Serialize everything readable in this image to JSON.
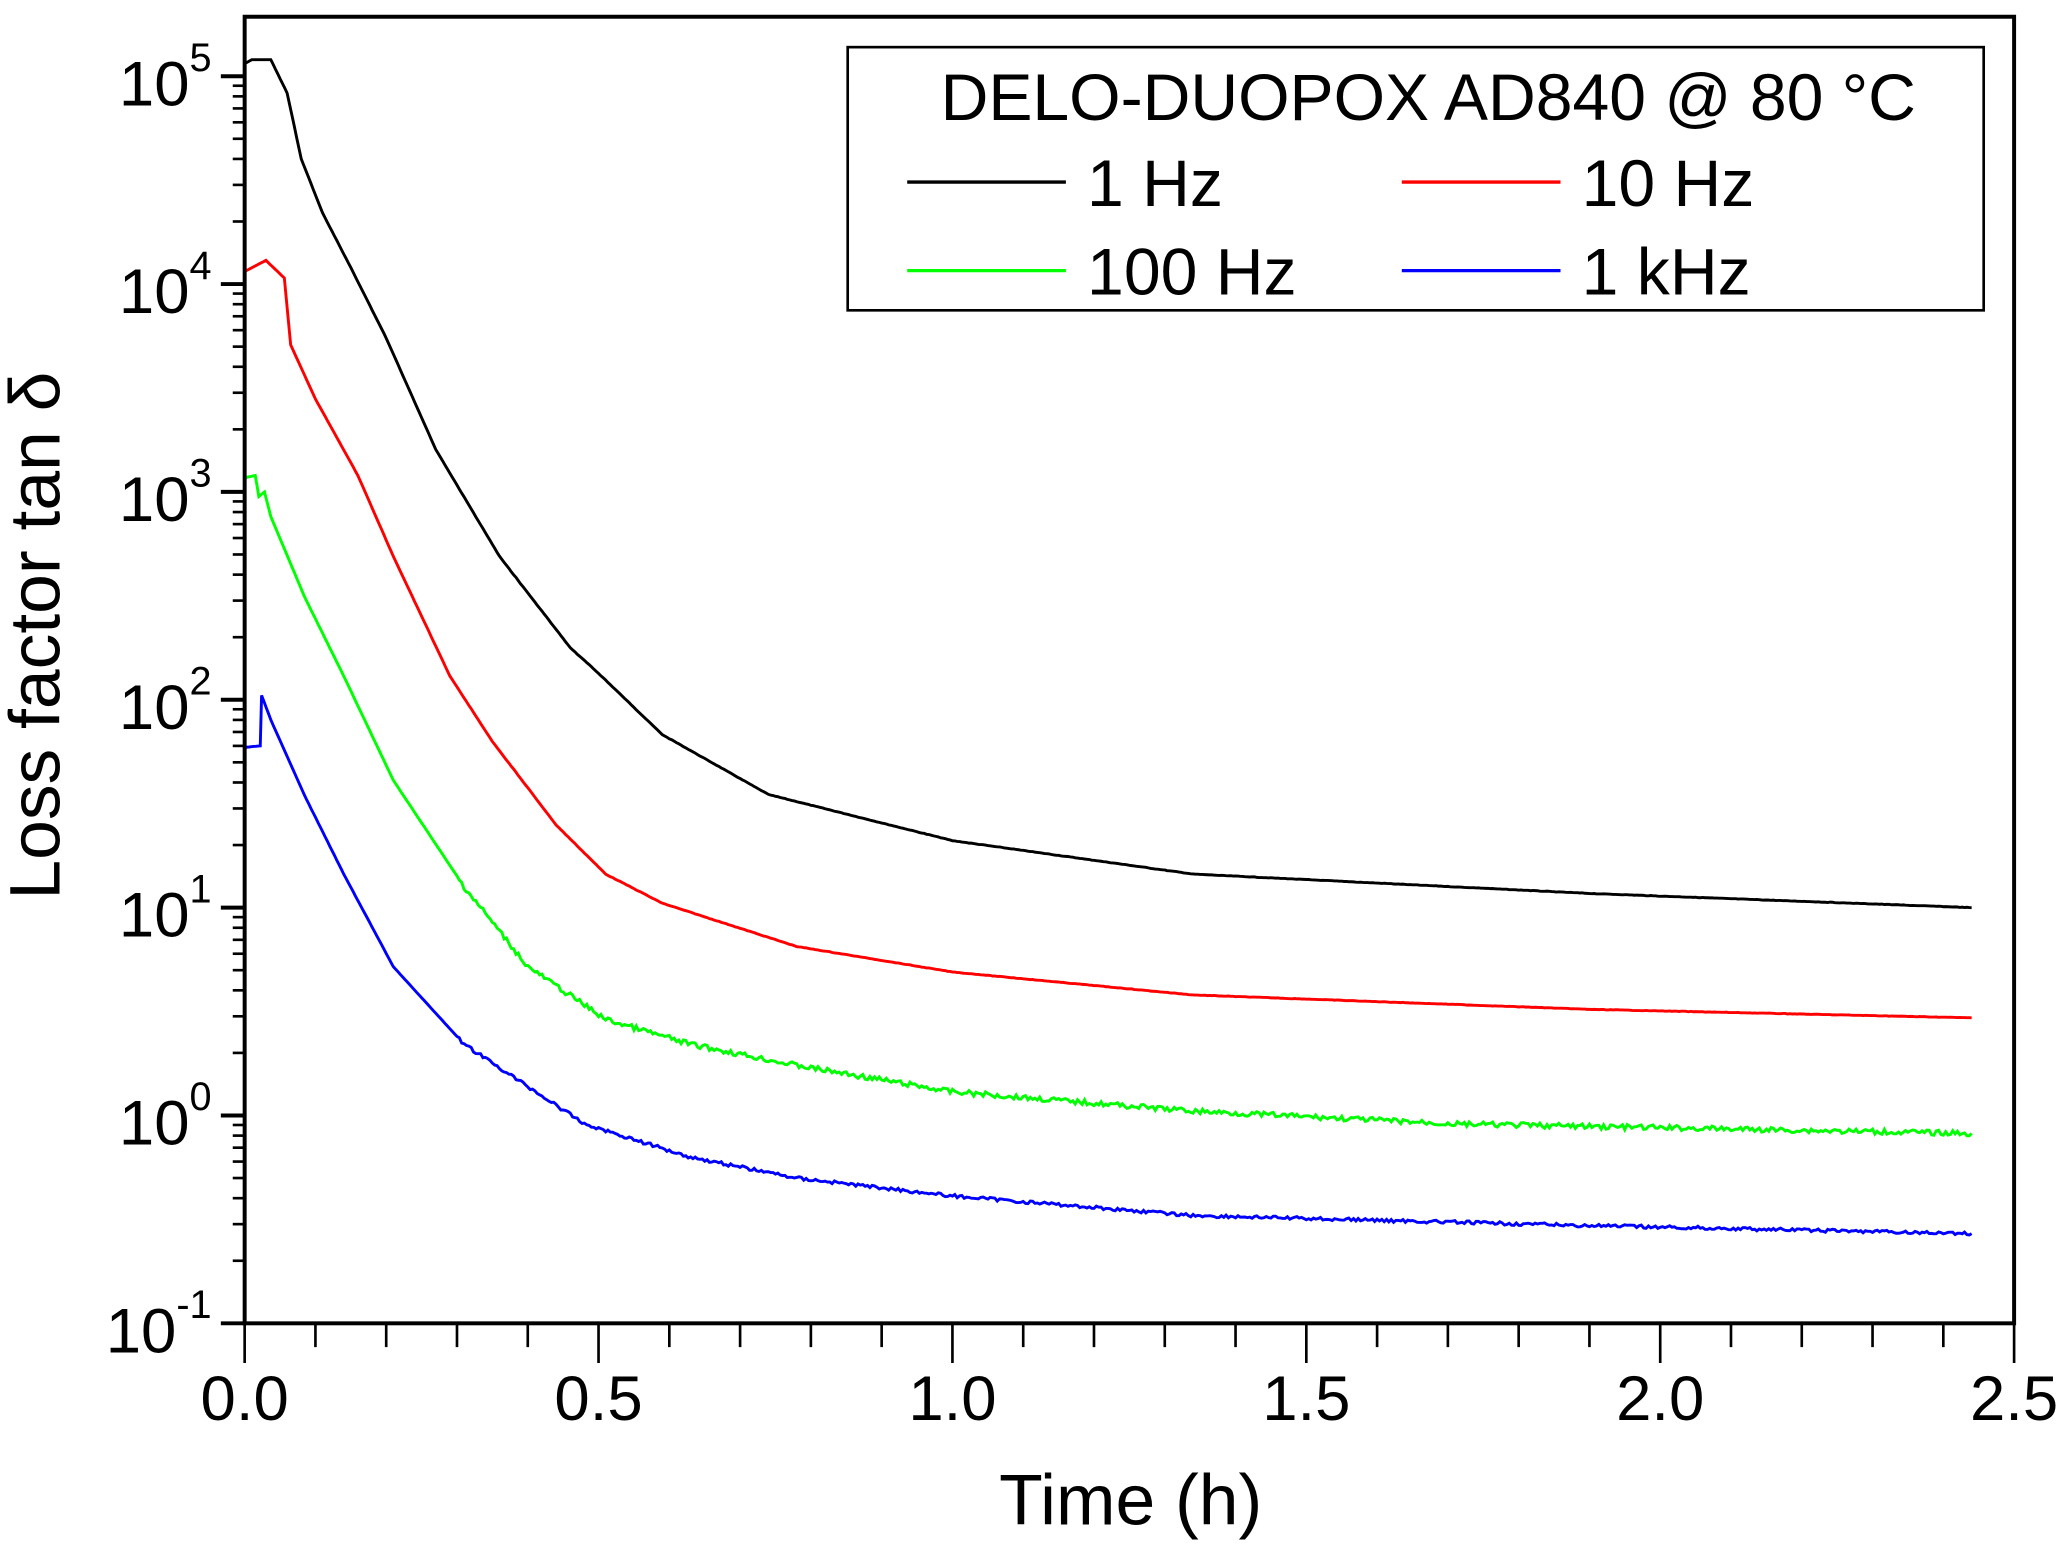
{
  "chart_data": {
    "type": "line",
    "title": "",
    "xlabel": "Time (h)",
    "ylabel": "Loss factor tan δ",
    "xlim": [
      0,
      2.5
    ],
    "ylim": [
      0.1,
      195000
    ],
    "yscale": "log",
    "grid": false,
    "x_ticks": [
      "0.0",
      "0.5",
      "1.0",
      "1.5",
      "2.0",
      "2.5"
    ],
    "y_ticks": [
      {
        "base": "10",
        "exp": "-1"
      },
      {
        "base": "10",
        "exp": "0"
      },
      {
        "base": "10",
        "exp": "1"
      },
      {
        "base": "10",
        "exp": "2"
      },
      {
        "base": "10",
        "exp": "3"
      },
      {
        "base": "10",
        "exp": "4"
      },
      {
        "base": "10",
        "exp": "5"
      }
    ],
    "legend": {
      "title": "DELO-DUOPOX AD840 @ 80 °C",
      "placement": "top-right"
    },
    "series": [
      {
        "name": "1 Hz",
        "color": "#000000",
        "x": [
          0,
          0.01,
          0.037,
          0.06,
          0.08,
          0.11,
          0.15,
          0.2,
          0.27,
          0.36,
          0.46,
          0.5,
          0.59,
          0.74,
          1.0,
          1.34,
          1.9,
          2.44
        ],
        "y": [
          115000,
          120000,
          120000,
          83000,
          40000,
          22000,
          12000,
          5500,
          1600,
          490,
          178,
          134,
          68,
          35,
          21,
          14.5,
          11.7,
          10
        ]
      },
      {
        "name": "10 Hz",
        "color": "#ff0000",
        "x": [
          0,
          0.03,
          0.056,
          0.065,
          0.1,
          0.16,
          0.21,
          0.29,
          0.35,
          0.44,
          0.51,
          0.59,
          0.78,
          1.0,
          1.34,
          1.9,
          2.44
        ],
        "y": [
          11500,
          13000,
          10700,
          5100,
          2800,
          1200,
          490,
          130,
          63,
          25,
          14.5,
          10.5,
          6.5,
          4.9,
          3.8,
          3.24,
          2.95
        ]
      },
      {
        "name": "100 Hz",
        "color": "#00ff00",
        "x": [
          0,
          0.015,
          0.02,
          0.028,
          0.037,
          0.084,
          0.14,
          0.21,
          0.31,
          0.4,
          0.51,
          0.63,
          0.78,
          1.0,
          1.34,
          1.71,
          2.44
        ],
        "y": [
          1170,
          1200,
          950,
          1000,
          760,
          316,
          130,
          41,
          12.6,
          5.2,
          2.9,
          2.2,
          1.74,
          1.3,
          1.05,
          0.91,
          0.82
        ]
      },
      {
        "name": "1 kHz",
        "color": "#0000ff",
        "x": [
          0,
          0.022,
          0.024,
          0.037,
          0.084,
          0.14,
          0.21,
          0.31,
          0.48,
          0.63,
          0.78,
          1.0,
          1.34,
          1.9,
          2.44
        ],
        "y": [
          59,
          60,
          105,
          80,
          35,
          14.5,
          5.2,
          2.2,
          0.91,
          0.63,
          0.5,
          0.41,
          0.33,
          0.295,
          0.27
        ]
      }
    ]
  }
}
